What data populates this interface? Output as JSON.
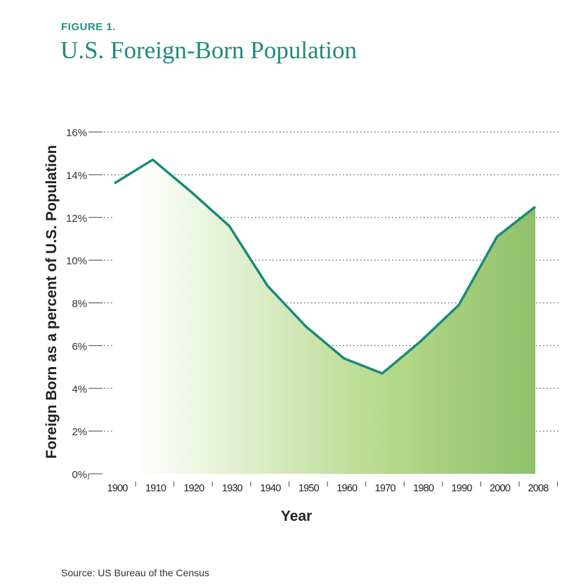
{
  "header": {
    "figure_label": "FIGURE 1.",
    "title": "U.S. Foreign-Born Population"
  },
  "source": "Source: US Bureau of the Census",
  "colors": {
    "line": "#1a8a7a",
    "fill_light": "#ffffff",
    "fill_mid": "#b5d98a",
    "fill_dark": "#8fc06a",
    "title": "#1f8a7c"
  },
  "chart_data": {
    "type": "area",
    "title": "U.S. Foreign-Born Population",
    "xlabel": "Year",
    "ylabel": "Foreign Born as a percent of U.S. Population",
    "categories": [
      "1900",
      "1910",
      "1920",
      "1930",
      "1940",
      "1950",
      "1960",
      "1970",
      "1980",
      "1990",
      "2000",
      "2008"
    ],
    "values": [
      13.6,
      14.7,
      13.2,
      11.6,
      8.8,
      6.9,
      5.4,
      4.7,
      6.2,
      7.9,
      11.1,
      12.5
    ],
    "yticks": [
      "0%",
      "2%",
      "4%",
      "6%",
      "8%",
      "10%",
      "12%",
      "14%",
      "16%"
    ],
    "ylim": [
      0,
      16
    ],
    "grid": true
  }
}
